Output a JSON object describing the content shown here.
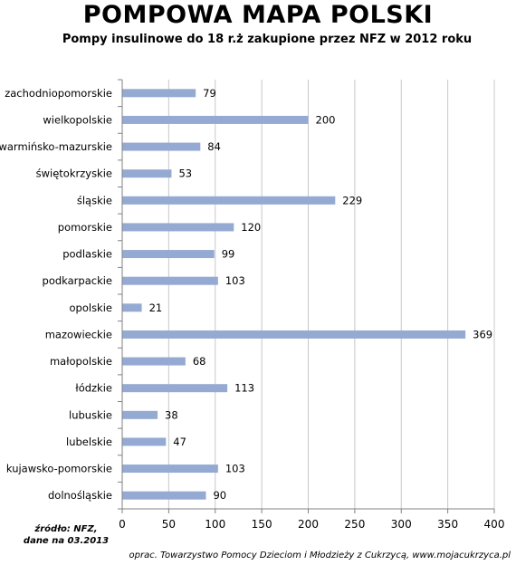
{
  "chart_data": {
    "type": "bar",
    "orientation": "horizontal",
    "title": "POMPOWA MAPA POLSKI",
    "subtitle": "Pompy insulinowe do 18 r.ż zakupione przez NFZ w 2012 roku",
    "categories": [
      "zachodniopomorskie",
      "wielkopolskie",
      "warmińsko-mazurskie",
      "świętokrzyskie",
      "śląskie",
      "pomorskie",
      "podlaskie",
      "podkarpackie",
      "opolskie",
      "mazowieckie",
      "małopolskie",
      "łódzkie",
      "lubuskie",
      "lubelskie",
      "kujawsko-pomorskie",
      "dolnośląskie"
    ],
    "values": [
      79,
      200,
      84,
      53,
      229,
      120,
      99,
      103,
      21,
      369,
      68,
      113,
      38,
      47,
      103,
      90
    ],
    "xlim": [
      0,
      400
    ],
    "xticks": [
      0,
      50,
      100,
      150,
      200,
      250,
      300,
      350,
      400
    ],
    "grid": true,
    "bar_color": "#95aad3",
    "grid_color": "#c8c8c8"
  },
  "footer": {
    "source_line1": "źródło: NFZ,",
    "source_line2": "dane na 03.2013",
    "credit": "oprac. Towarzystwo  Pomocy Dzieciom i Młodzieży z Cukrzycą, www.mojacukrzyca.pl"
  }
}
